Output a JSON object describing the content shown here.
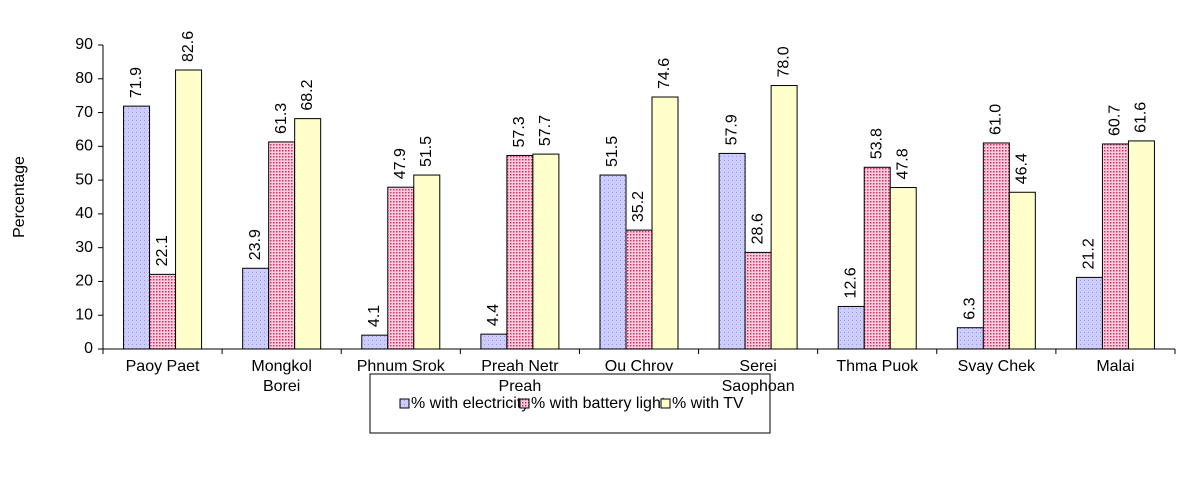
{
  "chart_data": {
    "type": "bar",
    "y_label": "Percentage",
    "categories": [
      "Paoy Paet",
      "Mongkol Borei",
      "Phnum Srok",
      "Preah Netr Preah",
      "Ou Chrov",
      "Serei Saophoan",
      "Thma Puok",
      "Svay Chek",
      "Malai"
    ],
    "series": [
      {
        "name": "% with electricity",
        "color": "#ccccff",
        "values": [
          71.9,
          23.9,
          4.1,
          4.4,
          51.5,
          57.9,
          12.6,
          6.3,
          21.2
        ],
        "value_labels": [
          "71.9",
          "23.9",
          "4.1",
          "4.4",
          "51.5",
          "57.9",
          "12.6",
          "6.3",
          "21.2"
        ]
      },
      {
        "name": "% with battery light",
        "color": "#ff99cc",
        "values": [
          22.1,
          61.3,
          47.9,
          57.3,
          35.2,
          28.6,
          53.8,
          61.0,
          60.7
        ],
        "value_labels": [
          "22.1",
          "61.3",
          "47.9",
          "57.3",
          "35.2",
          "28.6",
          "53.8",
          "61.0",
          "60.7"
        ]
      },
      {
        "name": "% with TV",
        "color": "#ffffcc",
        "values": [
          82.6,
          68.2,
          51.5,
          57.7,
          74.6,
          78.0,
          47.8,
          46.4,
          61.6
        ],
        "value_labels": [
          "82.6",
          "68.2",
          "51.5",
          "57.7",
          "74.6",
          "78.0",
          "47.8",
          "46.4",
          "61.6"
        ]
      }
    ],
    "ylim": [
      0,
      90
    ],
    "yticks": [
      0,
      10,
      20,
      30,
      40,
      50,
      60,
      70,
      80,
      90
    ],
    "legend": "bottom"
  }
}
